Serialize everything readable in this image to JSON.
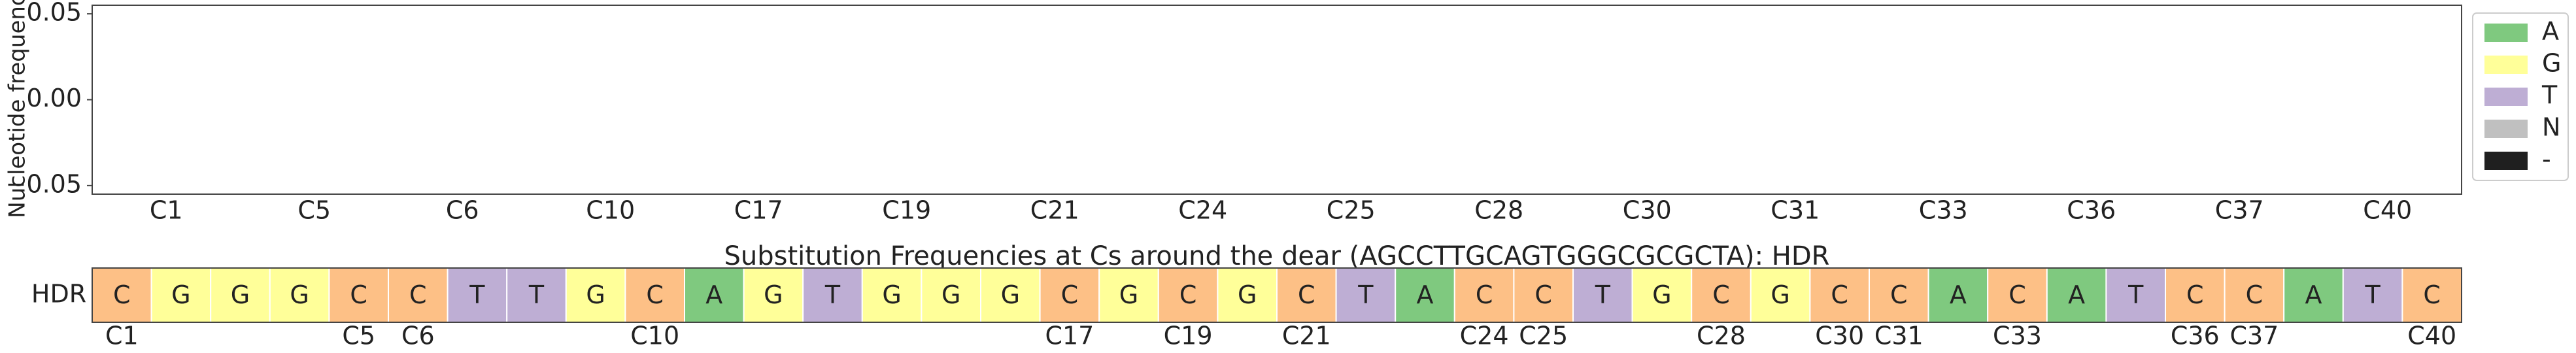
{
  "chart_data": [
    {
      "type": "stacked_bar",
      "ylabel": "Nucleotide frequency",
      "categories": [
        "C1",
        "C5",
        "C6",
        "C10",
        "C17",
        "C19",
        "C21",
        "C24",
        "C25",
        "C28",
        "C30",
        "C31",
        "C33",
        "C36",
        "C37",
        "C40"
      ],
      "series": [
        {
          "name": "A",
          "color": "#7fc97f",
          "values": [
            0,
            0,
            0,
            0,
            0,
            0,
            0,
            0,
            0,
            0,
            0,
            0,
            0,
            0,
            0,
            0
          ]
        },
        {
          "name": "G",
          "color": "#ffff99",
          "values": [
            0,
            0,
            0,
            0,
            0,
            0,
            0,
            0,
            0,
            0,
            0,
            0,
            0,
            0,
            0,
            0
          ]
        },
        {
          "name": "T",
          "color": "#beaed4",
          "values": [
            0,
            0,
            0,
            0,
            0,
            0,
            0,
            0,
            0,
            0,
            0,
            0,
            0,
            0,
            0,
            0
          ]
        },
        {
          "name": "N",
          "color": "#c0c0c0",
          "values": [
            0,
            0,
            0,
            0,
            0,
            0,
            0,
            0,
            0,
            0,
            0,
            0,
            0,
            0,
            0,
            0
          ]
        },
        {
          "name": "-",
          "color": "#1f1f1f",
          "values": [
            0,
            0,
            0,
            0,
            0,
            0,
            0,
            0,
            0,
            0,
            0,
            0,
            0,
            0,
            0,
            0
          ]
        }
      ],
      "ylim": [
        -0.055,
        0.055
      ],
      "yticks": [
        0.05,
        {
          "value": 0,
          "label": "0.00"
        },
        {
          "value": -0.05,
          "label": "−0.05"
        }
      ],
      "legend": "outside-right"
    },
    {
      "type": "sequence",
      "title": "Substitution Frequencies at Cs around the dear (AGCCTTGCAGTGGGCGCGCTA): HDR",
      "row_label": "HDR",
      "sequence": [
        "C",
        "G",
        "G",
        "G",
        "C",
        "C",
        "T",
        "T",
        "G",
        "C",
        "A",
        "G",
        "T",
        "G",
        "G",
        "G",
        "C",
        "G",
        "C",
        "G",
        "C",
        "T",
        "A",
        "C",
        "C",
        "T",
        "G",
        "C",
        "G",
        "C",
        "C",
        "A",
        "C",
        "A",
        "T",
        "C",
        "C",
        "A",
        "T",
        "C"
      ],
      "colors": {
        "A": "#7fc97f",
        "C": "#fdc086",
        "G": "#ffff99",
        "T": "#beaed4"
      },
      "xticks": [
        {
          "value": 1,
          "label": "C1"
        },
        {
          "value": 5,
          "label": "C5"
        },
        {
          "value": 6,
          "label": "C6"
        },
        {
          "value": 10,
          "label": "C10"
        },
        {
          "value": 17,
          "label": "C17"
        },
        {
          "value": 19,
          "label": "C19"
        },
        {
          "value": 21,
          "label": "C21"
        },
        {
          "value": 24,
          "label": "C24"
        },
        {
          "value": 25,
          "label": "C25"
        },
        {
          "value": 28,
          "label": "C28"
        },
        {
          "value": 30,
          "label": "C30"
        },
        {
          "value": 31,
          "label": "C31"
        },
        {
          "value": 33,
          "label": "C33"
        },
        {
          "value": 36,
          "label": "C36"
        },
        {
          "value": 37,
          "label": "C37"
        },
        {
          "value": 40,
          "label": "C40"
        }
      ]
    }
  ]
}
